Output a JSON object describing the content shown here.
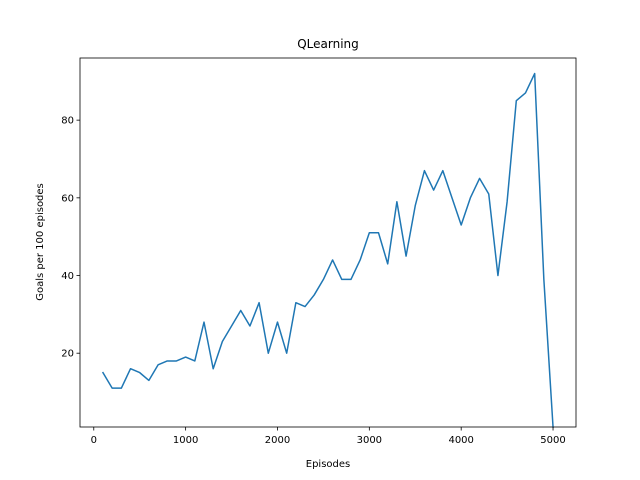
{
  "chart_data": {
    "type": "line",
    "title": "QLearning",
    "xlabel": "Episodes",
    "ylabel": "Goals per 100 episodes",
    "xlim": [
      -150,
      5250
    ],
    "ylim": [
      1,
      96
    ],
    "xticks": [
      0,
      1000,
      2000,
      3000,
      4000,
      5000
    ],
    "yticks": [
      20,
      40,
      60,
      80
    ],
    "grid": false,
    "line_color": "#1f77b4",
    "series": [
      {
        "x": [
          100,
          200,
          300,
          400,
          500,
          600,
          700,
          800,
          900,
          1000,
          1100,
          1200,
          1300,
          1400,
          1500,
          1600,
          1700,
          1800,
          1900,
          2000,
          2100,
          2200,
          2300,
          2400,
          2500,
          2600,
          2700,
          2800,
          2900,
          3000,
          3100,
          3200,
          3300,
          3400,
          3500,
          3600,
          3700,
          3800,
          3900,
          4000,
          4100,
          4200,
          4300,
          4400,
          4500,
          4600,
          4700,
          4800,
          4900,
          5000
        ],
        "values": [
          15,
          11,
          11,
          16,
          15,
          13,
          17,
          18,
          18,
          19,
          18,
          28,
          16,
          23,
          27,
          31,
          27,
          33,
          20,
          28,
          20,
          33,
          32,
          35,
          39,
          44,
          39,
          39,
          44,
          51,
          51,
          43,
          59,
          45,
          58,
          67,
          62,
          67,
          60,
          53,
          60,
          65,
          61,
          40,
          59,
          85,
          87,
          92,
          39,
          1
        ]
      }
    ]
  }
}
